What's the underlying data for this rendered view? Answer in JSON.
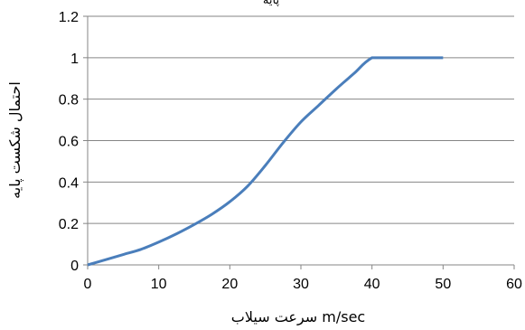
{
  "chart_data": {
    "type": "line",
    "title": "پایه",
    "xlabel": "سرعت سیلاب m/sec",
    "ylabel": "احتمال شکست پایه",
    "xlim": [
      0,
      60
    ],
    "ylim": [
      0,
      1.2
    ],
    "x_ticks": [
      0,
      10,
      20,
      30,
      40,
      50,
      60
    ],
    "y_ticks": [
      0,
      0.2,
      0.4,
      0.6,
      0.8,
      1,
      1.2
    ],
    "x_tick_labels": [
      "0",
      "10",
      "20",
      "30",
      "40",
      "50",
      "60"
    ],
    "y_tick_labels": [
      "0",
      "0.2",
      "0.4",
      "0.6",
      "0.8",
      "1",
      "1.2"
    ],
    "grid": "horizontal",
    "legend": "none",
    "series": [
      {
        "color": "#4a7ebb",
        "x": [
          0,
          2.5,
          5,
          7.5,
          10,
          12.5,
          15,
          17.5,
          20,
          22.5,
          25,
          27.5,
          30,
          32.5,
          35,
          37.5,
          40,
          45,
          50
        ],
        "y": [
          0,
          0.025,
          0.05,
          0.075,
          0.11,
          0.15,
          0.195,
          0.245,
          0.305,
          0.38,
          0.48,
          0.59,
          0.69,
          0.77,
          0.85,
          0.925,
          1,
          1,
          1
        ]
      }
    ]
  }
}
